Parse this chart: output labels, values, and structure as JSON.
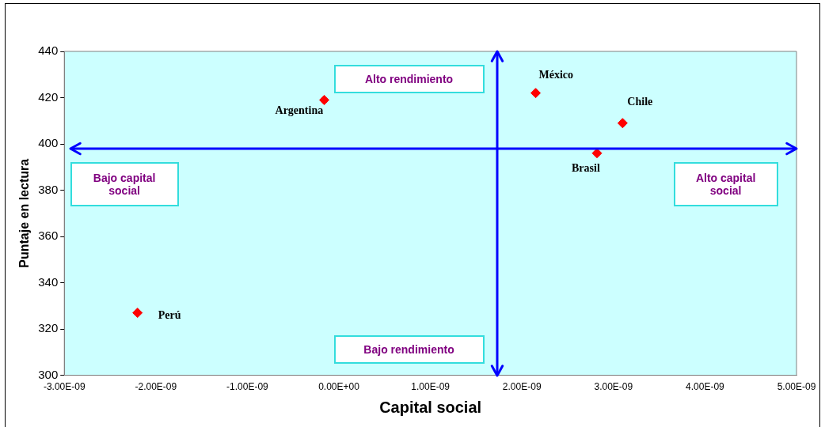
{
  "chart_data": {
    "type": "scatter",
    "xlabel": "Capital social",
    "ylabel": "Puntaje en lectura",
    "xlim": [
      -3e-09,
      5e-09
    ],
    "xticks": [
      {
        "value": -3e-09,
        "label": "-3.00E-09"
      },
      {
        "value": -2e-09,
        "label": "-2.00E-09"
      },
      {
        "value": -1e-09,
        "label": "-1.00E-09"
      },
      {
        "value": 0,
        "label": "0.00E+00"
      },
      {
        "value": 1e-09,
        "label": "1.00E-09"
      },
      {
        "value": 2e-09,
        "label": "2.00E-09"
      },
      {
        "value": 3e-09,
        "label": "3.00E-09"
      },
      {
        "value": 4e-09,
        "label": "4.00E-09"
      },
      {
        "value": 5e-09,
        "label": "5.00E-09"
      }
    ],
    "ylim": [
      300,
      440
    ],
    "yticks": [
      300,
      320,
      340,
      360,
      380,
      400,
      420,
      440
    ],
    "series": [
      {
        "name": "Argentina",
        "color": "#ff0000",
        "x": [
          -1.6e-10
        ],
        "values": [
          419
        ]
      },
      {
        "name": "México",
        "color": "#ff0000",
        "x": [
          2.15e-09
        ],
        "values": [
          422
        ]
      },
      {
        "name": "Chile",
        "color": "#ff0000",
        "x": [
          3.1e-09
        ],
        "values": [
          409
        ]
      },
      {
        "name": "Brasil",
        "color": "#ff0000",
        "x": [
          2.82e-09
        ],
        "values": [
          396
        ]
      },
      {
        "name": "Perú",
        "color": "#ff0000",
        "x": [
          -2.2e-09
        ],
        "values": [
          327
        ]
      }
    ],
    "ref_lines": [
      {
        "axis": "y",
        "value": 398,
        "color": "#0000ff"
      },
      {
        "axis": "x",
        "value": 1.73e-09,
        "color": "#0000ff"
      }
    ],
    "annotations": [
      "Alto rendimiento",
      "Bajo rendimiento",
      "Bajo capital social",
      "Alto capital social"
    ],
    "marker": "diamond",
    "grid": false,
    "legend": false
  }
}
